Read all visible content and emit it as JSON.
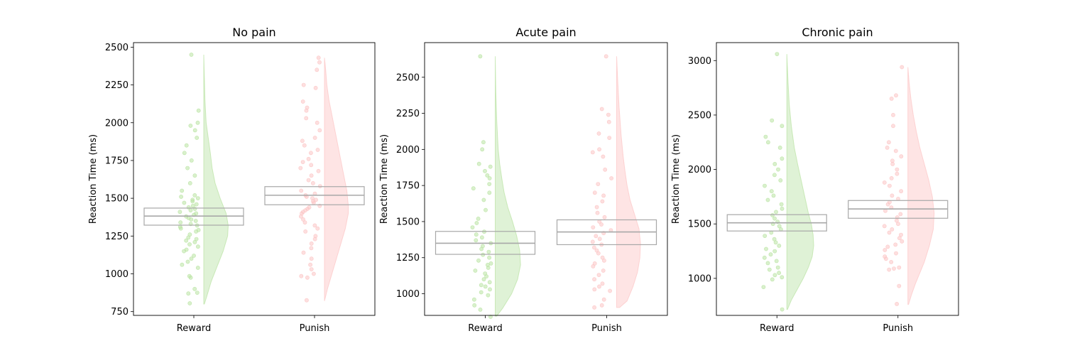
{
  "chart_data": [
    {
      "type": "raincloud",
      "title": "No pain",
      "ylabel": "Reaction Time (ms)",
      "categories": [
        "Reward",
        "Punish"
      ],
      "yticks": [
        750,
        1000,
        1250,
        1500,
        1750,
        2000,
        2250,
        2500
      ],
      "ylim": [
        725,
        2530
      ],
      "series": [
        {
          "category": "Reward",
          "color": "#b9e3a3",
          "box": {
            "q1": 1322,
            "median": 1382,
            "q3": 1435
          },
          "violin": {
            "min": 800,
            "max": 2450,
            "density": [
              [
                800,
                0.02
              ],
              [
                850,
                0.1
              ],
              [
                950,
                0.25
              ],
              [
                1050,
                0.45
              ],
              [
                1150,
                0.65
              ],
              [
                1250,
                0.8
              ],
              [
                1320,
                0.82
              ],
              [
                1400,
                0.75
              ],
              [
                1500,
                0.55
              ],
              [
                1600,
                0.38
              ],
              [
                1700,
                0.28
              ],
              [
                1800,
                0.22
              ],
              [
                1900,
                0.15
              ],
              [
                2000,
                0.08
              ],
              [
                2150,
                0.04
              ],
              [
                2300,
                0.02
              ],
              [
                2450,
                0.0
              ]
            ]
          },
          "points": [
            805,
            870,
            875,
            900,
            975,
            985,
            1040,
            1060,
            1080,
            1100,
            1120,
            1150,
            1160,
            1180,
            1195,
            1210,
            1220,
            1230,
            1240,
            1260,
            1280,
            1290,
            1300,
            1310,
            1320,
            1330,
            1340,
            1350,
            1360,
            1370,
            1380,
            1390,
            1400,
            1410,
            1420,
            1430,
            1440,
            1450,
            1460,
            1470,
            1480,
            1490,
            1500,
            1510,
            1520,
            1550,
            1600,
            1650,
            1700,
            1750,
            1800,
            1850,
            1900,
            1950,
            1980,
            2000,
            2080,
            2450
          ]
        },
        {
          "category": "Punish",
          "color": "#fcc4c4",
          "box": {
            "q1": 1457,
            "median": 1520,
            "q3": 1577
          },
          "violin": {
            "min": 820,
            "max": 2430,
            "density": [
              [
                820,
                0.0
              ],
              [
                900,
                0.1
              ],
              [
                1000,
                0.25
              ],
              [
                1100,
                0.4
              ],
              [
                1200,
                0.55
              ],
              [
                1300,
                0.7
              ],
              [
                1400,
                0.8
              ],
              [
                1450,
                0.8
              ],
              [
                1550,
                0.75
              ],
              [
                1650,
                0.65
              ],
              [
                1750,
                0.55
              ],
              [
                1850,
                0.45
              ],
              [
                1950,
                0.35
              ],
              [
                2050,
                0.25
              ],
              [
                2150,
                0.15
              ],
              [
                2250,
                0.08
              ],
              [
                2350,
                0.04
              ],
              [
                2430,
                0.0
              ]
            ]
          },
          "points": [
            825,
            975,
            985,
            1000,
            1030,
            1060,
            1100,
            1140,
            1170,
            1200,
            1230,
            1250,
            1280,
            1300,
            1320,
            1340,
            1360,
            1380,
            1400,
            1410,
            1420,
            1430,
            1440,
            1450,
            1470,
            1480,
            1490,
            1500,
            1510,
            1520,
            1530,
            1550,
            1580,
            1600,
            1620,
            1650,
            1680,
            1700,
            1720,
            1740,
            1760,
            1800,
            1820,
            1850,
            1880,
            1900,
            1950,
            2000,
            2030,
            2080,
            2100,
            2140,
            2230,
            2250,
            2350,
            2400,
            2430
          ]
        }
      ]
    },
    {
      "type": "raincloud",
      "title": "Acute pain",
      "ylabel": "Reaction Time (ms)",
      "categories": [
        "Reward",
        "Punish"
      ],
      "yticks": [
        1000,
        1250,
        1500,
        1750,
        2000,
        2250,
        2500
      ],
      "ylim": [
        850,
        2740
      ],
      "series": [
        {
          "category": "Reward",
          "color": "#b9e3a3",
          "box": {
            "q1": 1273,
            "median": 1350,
            "q3": 1432
          },
          "violin": {
            "min": 845,
            "max": 2645,
            "density": [
              [
                845,
                0.05
              ],
              [
                900,
                0.25
              ],
              [
                1000,
                0.55
              ],
              [
                1100,
                0.75
              ],
              [
                1200,
                0.85
              ],
              [
                1300,
                0.82
              ],
              [
                1400,
                0.72
              ],
              [
                1500,
                0.58
              ],
              [
                1600,
                0.42
              ],
              [
                1700,
                0.3
              ],
              [
                1800,
                0.22
              ],
              [
                1900,
                0.15
              ],
              [
                2000,
                0.1
              ],
              [
                2200,
                0.05
              ],
              [
                2400,
                0.02
              ],
              [
                2645,
                0.0
              ]
            ]
          },
          "points": [
            840,
            890,
            920,
            960,
            990,
            1010,
            1030,
            1050,
            1060,
            1080,
            1100,
            1120,
            1140,
            1160,
            1180,
            1200,
            1210,
            1230,
            1250,
            1270,
            1290,
            1310,
            1330,
            1350,
            1370,
            1390,
            1410,
            1430,
            1460,
            1490,
            1520,
            1580,
            1650,
            1700,
            1730,
            1760,
            1800,
            1820,
            1850,
            1880,
            1900,
            2000,
            2050,
            2645
          ]
        },
        {
          "category": "Punish",
          "color": "#fcc4c4",
          "box": {
            "q1": 1340,
            "median": 1428,
            "q3": 1512
          },
          "violin": {
            "min": 905,
            "max": 2645,
            "density": [
              [
                905,
                0.1
              ],
              [
                950,
                0.35
              ],
              [
                1050,
                0.55
              ],
              [
                1150,
                0.7
              ],
              [
                1250,
                0.78
              ],
              [
                1350,
                0.8
              ],
              [
                1450,
                0.75
              ],
              [
                1550,
                0.6
              ],
              [
                1650,
                0.45
              ],
              [
                1750,
                0.35
              ],
              [
                1850,
                0.28
              ],
              [
                1950,
                0.22
              ],
              [
                2100,
                0.15
              ],
              [
                2300,
                0.08
              ],
              [
                2500,
                0.03
              ],
              [
                2645,
                0.0
              ]
            ]
          },
          "points": [
            905,
            920,
            960,
            1020,
            1030,
            1050,
            1070,
            1100,
            1130,
            1160,
            1190,
            1210,
            1230,
            1250,
            1280,
            1300,
            1320,
            1340,
            1360,
            1380,
            1400,
            1420,
            1440,
            1460,
            1480,
            1500,
            1530,
            1560,
            1600,
            1640,
            1680,
            1700,
            1760,
            1800,
            1860,
            1950,
            1980,
            2000,
            2080,
            2110,
            2190,
            2240,
            2280,
            2645
          ]
        }
      ]
    },
    {
      "type": "raincloud",
      "title": "Chronic pain",
      "ylabel": "Reaction Time (ms)",
      "categories": [
        "Reward",
        "Punish"
      ],
      "yticks": [
        1000,
        1500,
        2000,
        2500,
        3000
      ],
      "ylim": [
        660,
        3165
      ],
      "series": [
        {
          "category": "Reward",
          "color": "#b9e3a3",
          "box": {
            "q1": 1435,
            "median": 1510,
            "q3": 1585
          },
          "violin": {
            "min": 715,
            "max": 3060,
            "density": [
              [
                715,
                0.02
              ],
              [
                800,
                0.15
              ],
              [
                900,
                0.35
              ],
              [
                1000,
                0.55
              ],
              [
                1100,
                0.72
              ],
              [
                1200,
                0.85
              ],
              [
                1300,
                0.9
              ],
              [
                1400,
                0.88
              ],
              [
                1500,
                0.82
              ],
              [
                1600,
                0.72
              ],
              [
                1750,
                0.6
              ],
              [
                1900,
                0.48
              ],
              [
                2050,
                0.36
              ],
              [
                2200,
                0.25
              ],
              [
                2400,
                0.15
              ],
              [
                2600,
                0.08
              ],
              [
                2800,
                0.04
              ],
              [
                3060,
                0.0
              ]
            ]
          },
          "points": [
            715,
            920,
            990,
            1010,
            1030,
            1050,
            1080,
            1100,
            1140,
            1160,
            1190,
            1220,
            1250,
            1270,
            1300,
            1330,
            1360,
            1390,
            1420,
            1450,
            1480,
            1500,
            1520,
            1550,
            1580,
            1610,
            1640,
            1680,
            1720,
            1760,
            1800,
            1850,
            1900,
            1950,
            2000,
            2050,
            2100,
            2200,
            2250,
            2300,
            2400,
            2450,
            3060
          ]
        },
        {
          "category": "Punish",
          "color": "#fcc4c4",
          "box": {
            "q1": 1552,
            "median": 1637,
            "q3": 1715
          },
          "violin": {
            "min": 760,
            "max": 2940,
            "density": [
              [
                760,
                0.02
              ],
              [
                850,
                0.12
              ],
              [
                950,
                0.25
              ],
              [
                1050,
                0.4
              ],
              [
                1150,
                0.55
              ],
              [
                1300,
                0.72
              ],
              [
                1450,
                0.85
              ],
              [
                1600,
                0.88
              ],
              [
                1750,
                0.82
              ],
              [
                1900,
                0.7
              ],
              [
                2050,
                0.55
              ],
              [
                2200,
                0.4
              ],
              [
                2350,
                0.28
              ],
              [
                2500,
                0.18
              ],
              [
                2650,
                0.1
              ],
              [
                2800,
                0.04
              ],
              [
                2940,
                0.0
              ]
            ]
          },
          "points": [
            765,
            930,
            1080,
            1090,
            1100,
            1150,
            1180,
            1200,
            1230,
            1260,
            1290,
            1310,
            1340,
            1370,
            1400,
            1420,
            1450,
            1480,
            1500,
            1530,
            1560,
            1590,
            1620,
            1650,
            1680,
            1700,
            1730,
            1760,
            1800,
            1850,
            1880,
            1920,
            1960,
            2000,
            2050,
            2080,
            2120,
            2170,
            2200,
            2250,
            2400,
            2500,
            2650,
            2680,
            2940
          ]
        }
      ]
    }
  ]
}
